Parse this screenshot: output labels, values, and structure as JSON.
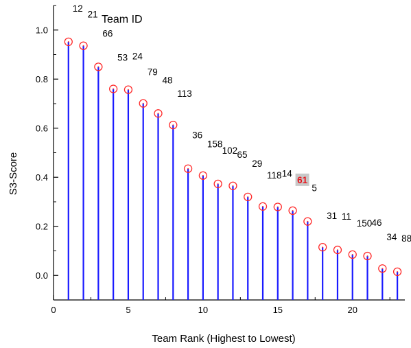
{
  "chart_data": {
    "type": "scatter",
    "style": "stem",
    "xlabel": "Team Rank (Highest to Lowest)",
    "ylabel": "S3-Score",
    "legend_text": "Team ID",
    "xlim": [
      0,
      23.5
    ],
    "ylim": [
      -0.1,
      1.1
    ],
    "xticks": [
      0,
      5,
      10,
      15,
      20
    ],
    "yticks": [
      0.0,
      0.2,
      0.4,
      0.6,
      0.8,
      1.0
    ],
    "yticks_text": [
      "0.0",
      "0.2",
      "0.4",
      "0.6",
      "0.8",
      "1.0"
    ],
    "stem_color": "#1a1aff",
    "marker_color": "#ff2a2a",
    "highlight_color": "#e8141b",
    "highlight_bg": "#c8c8c8",
    "highlight_team": "61",
    "points": [
      {
        "rank": 1,
        "score": 0.952,
        "team": "12"
      },
      {
        "rank": 2,
        "score": 0.936,
        "team": "21"
      },
      {
        "rank": 3,
        "score": 0.85,
        "team": "66"
      },
      {
        "rank": 4,
        "score": 0.76,
        "team": "53"
      },
      {
        "rank": 5,
        "score": 0.757,
        "team": "24"
      },
      {
        "rank": 6,
        "score": 0.701,
        "team": "79"
      },
      {
        "rank": 7,
        "score": 0.66,
        "team": "48"
      },
      {
        "rank": 8,
        "score": 0.613,
        "team": "113"
      },
      {
        "rank": 9,
        "score": 0.435,
        "team": "36"
      },
      {
        "rank": 10,
        "score": 0.407,
        "team": "158"
      },
      {
        "rank": 11,
        "score": 0.373,
        "team": "102"
      },
      {
        "rank": 12,
        "score": 0.365,
        "team": "65"
      },
      {
        "rank": 13,
        "score": 0.32,
        "team": "29"
      },
      {
        "rank": 14,
        "score": 0.281,
        "team": "118"
      },
      {
        "rank": 15,
        "score": 0.279,
        "team": "14"
      },
      {
        "rank": 16,
        "score": 0.264,
        "team": "61"
      },
      {
        "rank": 17,
        "score": 0.22,
        "team": "5"
      },
      {
        "rank": 18,
        "score": 0.115,
        "team": "31"
      },
      {
        "rank": 19,
        "score": 0.104,
        "team": "11"
      },
      {
        "rank": 20,
        "score": 0.085,
        "team": "150"
      },
      {
        "rank": 21,
        "score": 0.079,
        "team": "46"
      },
      {
        "rank": 22,
        "score": 0.028,
        "team": "34"
      },
      {
        "rank": 23,
        "score": 0.015,
        "team": "88"
      }
    ]
  }
}
